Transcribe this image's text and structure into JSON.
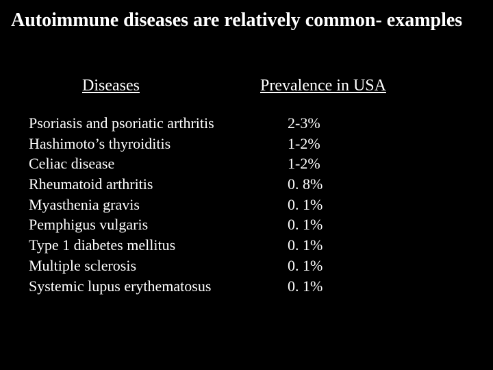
{
  "slide": {
    "title": "Autoimmune diseases are relatively common- examples",
    "background_color": "#000000",
    "text_color": "#ffffff",
    "title_fontsize": 28,
    "title_fontweight": "bold",
    "header_fontsize": 24,
    "body_fontsize": 22,
    "font_family": "Times New Roman",
    "columns": {
      "diseases_header": "Diseases",
      "prevalence_header": "Prevalence in USA"
    },
    "table": {
      "type": "table",
      "columns": [
        "Diseases",
        "Prevalence in USA"
      ],
      "rows": [
        {
          "disease": "Psoriasis and psoriatic arthritis",
          "prevalence": "2-3%"
        },
        {
          "disease": "Hashimoto’s thyroiditis",
          "prevalence": "1-2%"
        },
        {
          "disease": "Celiac disease",
          "prevalence": "1-2%"
        },
        {
          "disease": "Rheumatoid arthritis",
          "prevalence": "0. 8%"
        },
        {
          "disease": "Myasthenia gravis",
          "prevalence": "0. 1%"
        },
        {
          "disease": "Pemphigus  vulgaris",
          "prevalence": "0. 1%"
        },
        {
          "disease": "Type 1 diabetes mellitus",
          "prevalence": "0. 1%"
        },
        {
          "disease": "Multiple sclerosis",
          "prevalence": "0. 1%"
        },
        {
          "disease": "Systemic lupus erythematosus",
          "prevalence": "0. 1%"
        }
      ]
    }
  }
}
